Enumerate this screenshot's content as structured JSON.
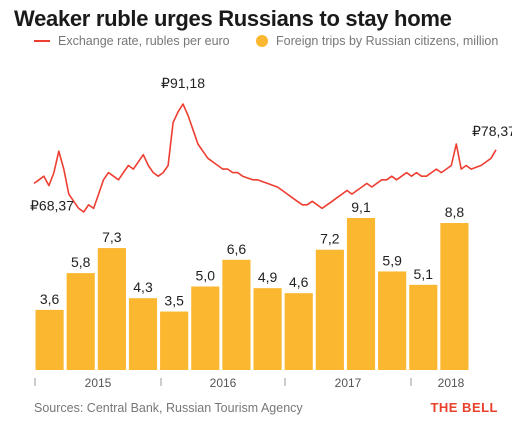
{
  "title": "Weaker ruble urges Russians to stay home",
  "colors": {
    "line": "#ee3e32",
    "bar": "#fbb730",
    "bar_label": "#222222",
    "axis": "#999999"
  },
  "source": "Sources: Central Bank, Russian Tourism Agency",
  "brand": "THE BELL",
  "chart_data": {
    "type": "bar+line",
    "legend": {
      "line": "Exchange rate, rubles per euro",
      "bars": "Foreign trips by Russian citizens, million"
    },
    "x_ticks": [
      "2015",
      "2016",
      "2017",
      "2018"
    ],
    "bars": {
      "name": "Foreign trips by Russian citizens, million",
      "values": [
        3.6,
        5.8,
        7.3,
        4.3,
        3.5,
        5.0,
        6.6,
        4.9,
        4.6,
        7.2,
        9.1,
        5.9,
        5.1,
        8.8
      ],
      "labels": [
        "3,6",
        "5,8",
        "7,3",
        "4,3",
        "3,5",
        "5,0",
        "6,6",
        "4,9",
        "4,6",
        "7,2",
        "9,1",
        "5,9",
        "5,1",
        "8,8"
      ]
    },
    "line": {
      "name": "Exchange rate, rubles per euro",
      "values": [
        69,
        70,
        71,
        68.37,
        72,
        78,
        73,
        66,
        64,
        62,
        61,
        63,
        62,
        66,
        70,
        72,
        71,
        70,
        72,
        74,
        73,
        75,
        77,
        74,
        72,
        71,
        72,
        74,
        86,
        89,
        91.18,
        88,
        84,
        80,
        78,
        76,
        75,
        74,
        73,
        73,
        72,
        72,
        71,
        70.5,
        70,
        70,
        69.5,
        69,
        68.5,
        68,
        67,
        66,
        65,
        64,
        63,
        63,
        64,
        63,
        62,
        63,
        64,
        65,
        66,
        67,
        66,
        67,
        68,
        69,
        68,
        69,
        70,
        70,
        71,
        70,
        71,
        72,
        71,
        72,
        71,
        71,
        72,
        73,
        72,
        73,
        74,
        80,
        73,
        74,
        73,
        73.5,
        74,
        75,
        76,
        78.37
      ],
      "annotations": [
        {
          "label": "₽68,37",
          "index": 3
        },
        {
          "label": "₽91,18",
          "index": 30
        },
        {
          "label": "₽78,37",
          "index": 93
        }
      ]
    }
  }
}
